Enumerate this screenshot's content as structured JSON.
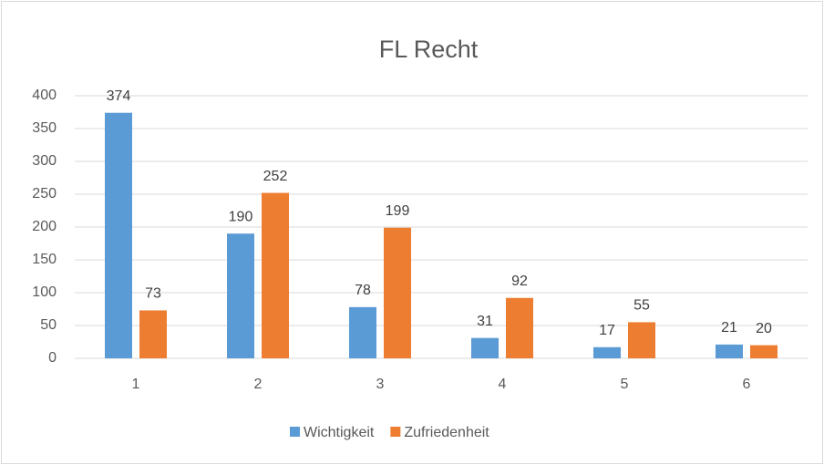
{
  "chart_data": {
    "type": "bar",
    "title": "FL Recht",
    "categories": [
      "1",
      "2",
      "3",
      "4",
      "5",
      "6"
    ],
    "series": [
      {
        "name": "Wichtigkeit",
        "color": "#5b9bd5",
        "values": [
          374,
          190,
          78,
          31,
          17,
          21
        ]
      },
      {
        "name": "Zufriedenheit",
        "color": "#ed7d31",
        "values": [
          73,
          252,
          199,
          92,
          55,
          20
        ]
      }
    ],
    "ylim": [
      0,
      400
    ],
    "yticks": [
      0,
      50,
      100,
      150,
      200,
      250,
      300,
      350,
      400
    ],
    "grid": true,
    "legend": "bottom"
  }
}
